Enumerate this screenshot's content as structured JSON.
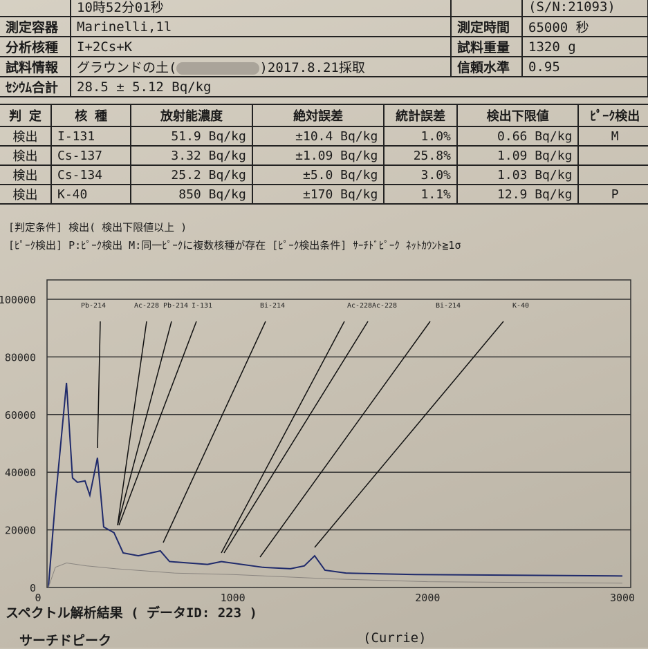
{
  "info": {
    "row0": {
      "value": "10時52分01秒",
      "right_value": "(S/N:21093)"
    },
    "container": {
      "label": "測定容器",
      "value": "Marinelli,1l",
      "right_label": "測定時間",
      "right_value": "65000 秒"
    },
    "nuclides": {
      "label": "分析核種",
      "value": "I+2Cs+K",
      "right_label": "試料重量",
      "right_value": "1320 g"
    },
    "sample": {
      "label": "試料情報",
      "value": "グラウンドの土(",
      "value_tail": ")2017.8.21採取",
      "right_label": "信頼水準",
      "right_value": "0.95"
    },
    "cesium_total": {
      "label": "ｾｼｳﾑ合計",
      "value": "28.5 ± 5.12 Bq/kg"
    }
  },
  "results": {
    "headers": [
      "判 定",
      "核 種",
      "放射能濃度",
      "絶対誤差",
      "統計誤差",
      "検出下限値",
      "ﾋﾟｰｸ検出"
    ],
    "rows": [
      [
        "検出",
        "I-131",
        "51.9  Bq/kg",
        "±10.4  Bq/kg",
        "1.0%",
        "0.66  Bq/kg",
        "M"
      ],
      [
        "検出",
        "Cs-137",
        "3.32  Bq/kg",
        "±1.09  Bq/kg",
        "25.8%",
        "1.09  Bq/kg",
        ""
      ],
      [
        "検出",
        "Cs-134",
        "25.2  Bq/kg",
        "±5.0  Bq/kg",
        "3.0%",
        "1.03  Bq/kg",
        ""
      ],
      [
        "検出",
        "K-40",
        "850  Bq/kg",
        "±170  Bq/kg",
        "1.1%",
        "12.9  Bq/kg",
        "P"
      ]
    ]
  },
  "notes": {
    "criteria": "[判定条件] 検出( 検出下限値以上 )",
    "peak": "[ﾋﾟｰｸ検出] P:ﾋﾟｰｸ検出   M:同一ﾋﾟｰｸに複数核種が存在   [ﾋﾟｰｸ検出条件] ｻｰﾁﾄﾞﾋﾟｰｸ ﾈｯﾄｶｳﾝﾄ≧1σ"
  },
  "chart_data": {
    "type": "line",
    "xlim": [
      0,
      3000
    ],
    "ylim": [
      0,
      100000
    ],
    "x_ticks": [
      "0",
      "1000",
      "2000",
      "3000"
    ],
    "y_ticks": [
      "0",
      "20000",
      "40000",
      "60000",
      "80000",
      "100000"
    ],
    "grid": true,
    "colors": {
      "spectrum": "#1f2a6b",
      "background": "#8a8580"
    },
    "series": [
      {
        "x": [
          53,
          89,
          146,
          177,
          202,
          241,
          266,
          305,
          337,
          390,
          437,
          515,
          628,
          675,
          870,
          941,
          1154,
          1296,
          1367,
          1420,
          1473,
          1580,
          1935,
          3000
        ],
        "y": [
          0,
          30000,
          71000,
          38000,
          36500,
          37000,
          32000,
          45000,
          21000,
          19000,
          12000,
          11000,
          12700,
          9000,
          8000,
          9000,
          7000,
          6500,
          7500,
          11000,
          6000,
          5000,
          4500,
          4000
        ]
      },
      {
        "x": [
          53,
          89,
          146,
          250,
          400,
          700,
          1000,
          1500,
          2000,
          3000
        ],
        "y": [
          0,
          7000,
          8500,
          7500,
          6500,
          5000,
          4500,
          3000,
          2000,
          1500
        ]
      }
    ],
    "peak_labels": [
      "Pb-214",
      "Ac-228",
      "Pb-214",
      "I-131",
      "Bi-214",
      "Ac-228",
      "Ac-228",
      "Bi-214",
      "K-40"
    ]
  },
  "footer": {
    "title": "スペクトル解析結果 ( データID: 223 )",
    "search": "サーチドピーク",
    "method": "(Currie)"
  }
}
